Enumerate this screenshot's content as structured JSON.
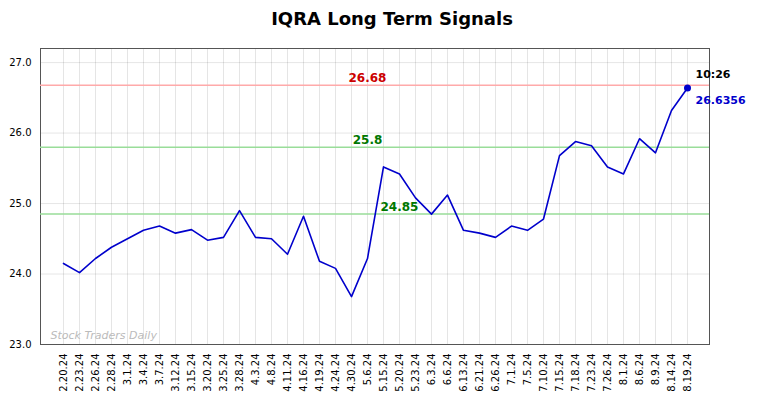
{
  "chart_data": {
    "type": "line",
    "title": "IQRA Long Term Signals",
    "categories": [
      "2.20.24",
      "2.23.24",
      "2.26.24",
      "2.28.24",
      "3.1.24",
      "3.4.24",
      "3.7.24",
      "3.12.24",
      "3.15.24",
      "3.20.24",
      "3.25.24",
      "3.28.24",
      "4.3.24",
      "4.8.24",
      "4.11.24",
      "4.16.24",
      "4.19.24",
      "4.24.24",
      "4.30.24",
      "5.6.24",
      "5.15.24",
      "5.20.24",
      "5.23.24",
      "6.3.24",
      "6.6.24",
      "6.13.24",
      "6.21.24",
      "6.26.24",
      "7.1.24",
      "7.5.24",
      "7.10.24",
      "7.15.24",
      "7.18.24",
      "7.23.24",
      "7.26.24",
      "8.1.24",
      "8.6.24",
      "8.9.24",
      "8.14.24",
      "8.19.24"
    ],
    "values": [
      24.15,
      24.02,
      24.22,
      24.38,
      24.5,
      24.62,
      24.68,
      24.58,
      24.63,
      24.48,
      24.52,
      24.9,
      24.52,
      24.5,
      24.28,
      24.82,
      24.18,
      24.08,
      23.68,
      24.22,
      25.52,
      25.42,
      25.08,
      24.85,
      25.12,
      24.62,
      24.58,
      24.52,
      24.68,
      24.62,
      24.78,
      25.68,
      25.88,
      25.82,
      25.52,
      25.42,
      25.92,
      25.72,
      26.32,
      26.64
    ],
    "color": "#0000cc",
    "hlines": [
      {
        "value": 26.68,
        "color": "#ffaaaa",
        "label_color": "#cc0000",
        "at": "5.6.24"
      },
      {
        "value": 25.8,
        "color": "#99dd99",
        "label_color": "#007700",
        "at": "5.6.24"
      },
      {
        "value": 24.85,
        "color": "#99dd99",
        "label_color": "#007700",
        "at": "5.20.24"
      }
    ],
    "end_labels": [
      {
        "text": "10:26",
        "color": "#000000"
      },
      {
        "text": "26.6356",
        "color": "#0000cc"
      }
    ],
    "watermark": {
      "text": "Stock Traders Daily",
      "color": "#bbbbbb"
    },
    "ylim": [
      23.0,
      27.2
    ],
    "yticks": [
      23,
      24,
      25,
      26,
      27
    ],
    "grid": true
  }
}
